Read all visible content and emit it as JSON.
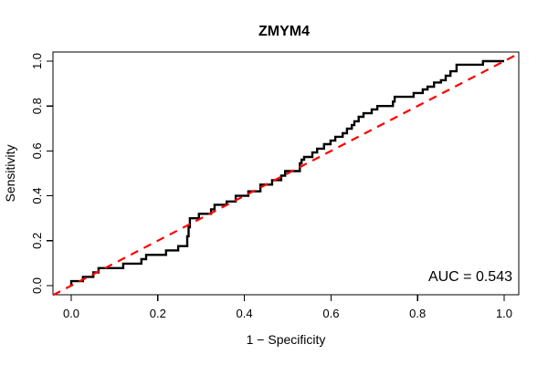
{
  "figure": {
    "title": "ZMYM4",
    "xlabel": "1 − Specificity",
    "ylabel": "Sensitivity",
    "auc_label": "AUC = 0.543"
  },
  "chart_data": {
    "type": "line",
    "subtype": "roc-step-curve",
    "title": "ZMYM4",
    "xlabel": "1 − Specificity",
    "ylabel": "Sensitivity",
    "xlim": [
      0.0,
      1.0
    ],
    "ylim": [
      0.0,
      1.0
    ],
    "grid": false,
    "legend_position": "none",
    "auc": 0.543,
    "annotations": [
      {
        "text": "AUC = 0.543",
        "position": "bottom-right"
      }
    ],
    "x_ticks": [
      {
        "v": 0.0,
        "label": "0.0"
      },
      {
        "v": 0.2,
        "label": "0.2"
      },
      {
        "v": 0.4,
        "label": "0.4"
      },
      {
        "v": 0.6,
        "label": "0.6"
      },
      {
        "v": 0.8,
        "label": "0.8"
      },
      {
        "v": 1.0,
        "label": "1.0"
      }
    ],
    "y_ticks": [
      {
        "v": 0.0,
        "label": "0.0"
      },
      {
        "v": 0.2,
        "label": "0.2"
      },
      {
        "v": 0.4,
        "label": "0.4"
      },
      {
        "v": 0.6,
        "label": "0.6"
      },
      {
        "v": 0.8,
        "label": "0.8"
      },
      {
        "v": 1.0,
        "label": "1.0"
      }
    ],
    "series": [
      {
        "name": "ROC curve",
        "type": "step",
        "color": "#000000",
        "line_width": 2.4,
        "points": [
          [
            0.0,
            0.0
          ],
          [
            0.0,
            0.02
          ],
          [
            0.027,
            0.02
          ],
          [
            0.027,
            0.039
          ],
          [
            0.051,
            0.039
          ],
          [
            0.051,
            0.059
          ],
          [
            0.063,
            0.059
          ],
          [
            0.063,
            0.078
          ],
          [
            0.12,
            0.078
          ],
          [
            0.12,
            0.098
          ],
          [
            0.162,
            0.098
          ],
          [
            0.162,
            0.118
          ],
          [
            0.173,
            0.118
          ],
          [
            0.173,
            0.137
          ],
          [
            0.219,
            0.137
          ],
          [
            0.219,
            0.157
          ],
          [
            0.247,
            0.157
          ],
          [
            0.247,
            0.176
          ],
          [
            0.268,
            0.176
          ],
          [
            0.268,
            0.22
          ],
          [
            0.271,
            0.22
          ],
          [
            0.271,
            0.26
          ],
          [
            0.274,
            0.26
          ],
          [
            0.274,
            0.3
          ],
          [
            0.295,
            0.3
          ],
          [
            0.295,
            0.32
          ],
          [
            0.323,
            0.32
          ],
          [
            0.323,
            0.34
          ],
          [
            0.331,
            0.34
          ],
          [
            0.331,
            0.36
          ],
          [
            0.359,
            0.36
          ],
          [
            0.359,
            0.375
          ],
          [
            0.38,
            0.375
          ],
          [
            0.38,
            0.4
          ],
          [
            0.409,
            0.4
          ],
          [
            0.409,
            0.42
          ],
          [
            0.437,
            0.42
          ],
          [
            0.437,
            0.45
          ],
          [
            0.464,
            0.45
          ],
          [
            0.464,
            0.47
          ],
          [
            0.485,
            0.47
          ],
          [
            0.485,
            0.49
          ],
          [
            0.494,
            0.49
          ],
          [
            0.494,
            0.51
          ],
          [
            0.528,
            0.51
          ],
          [
            0.528,
            0.545
          ],
          [
            0.532,
            0.545
          ],
          [
            0.532,
            0.561
          ],
          [
            0.538,
            0.561
          ],
          [
            0.538,
            0.573
          ],
          [
            0.557,
            0.573
          ],
          [
            0.557,
            0.593
          ],
          [
            0.568,
            0.593
          ],
          [
            0.568,
            0.61
          ],
          [
            0.584,
            0.61
          ],
          [
            0.584,
            0.63
          ],
          [
            0.599,
            0.63
          ],
          [
            0.599,
            0.646
          ],
          [
            0.61,
            0.646
          ],
          [
            0.61,
            0.663
          ],
          [
            0.627,
            0.663
          ],
          [
            0.627,
            0.679
          ],
          [
            0.637,
            0.679
          ],
          [
            0.637,
            0.699
          ],
          [
            0.648,
            0.699
          ],
          [
            0.648,
            0.715
          ],
          [
            0.654,
            0.715
          ],
          [
            0.654,
            0.732
          ],
          [
            0.664,
            0.732
          ],
          [
            0.664,
            0.752
          ],
          [
            0.675,
            0.752
          ],
          [
            0.675,
            0.768
          ],
          [
            0.694,
            0.768
          ],
          [
            0.694,
            0.785
          ],
          [
            0.707,
            0.785
          ],
          [
            0.707,
            0.8
          ],
          [
            0.743,
            0.8
          ],
          [
            0.743,
            0.82
          ],
          [
            0.747,
            0.82
          ],
          [
            0.747,
            0.841
          ],
          [
            0.791,
            0.841
          ],
          [
            0.791,
            0.858
          ],
          [
            0.812,
            0.858
          ],
          [
            0.812,
            0.874
          ],
          [
            0.823,
            0.874
          ],
          [
            0.823,
            0.886
          ],
          [
            0.838,
            0.886
          ],
          [
            0.838,
            0.905
          ],
          [
            0.854,
            0.905
          ],
          [
            0.854,
            0.915
          ],
          [
            0.865,
            0.915
          ],
          [
            0.865,
            0.935
          ],
          [
            0.876,
            0.935
          ],
          [
            0.876,
            0.955
          ],
          [
            0.89,
            0.955
          ],
          [
            0.89,
            0.984
          ],
          [
            0.951,
            0.984
          ],
          [
            0.951,
            1.0
          ],
          [
            1.0,
            1.0
          ]
        ]
      },
      {
        "name": "Chance diagonal",
        "type": "line",
        "style": "dashed",
        "color": "#FF0000",
        "line_width": 2.2,
        "points": [
          [
            0.0,
            0.0
          ],
          [
            1.0,
            1.0
          ]
        ]
      }
    ]
  }
}
